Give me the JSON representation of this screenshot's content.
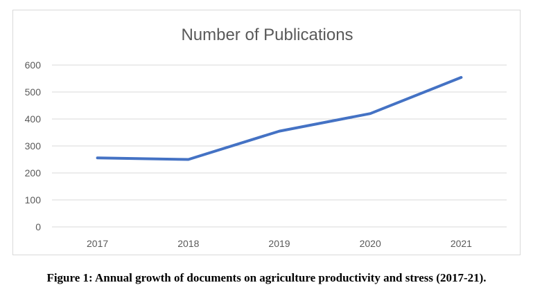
{
  "chart_data": {
    "type": "line",
    "title": "Number of Publications",
    "categories": [
      "2017",
      "2018",
      "2019",
      "2020",
      "2021"
    ],
    "series": [
      {
        "values": [
          256,
          250,
          355,
          420,
          554
        ],
        "color": "#4472c4"
      }
    ],
    "ylim": [
      0,
      600
    ],
    "yticks": [
      0,
      100,
      200,
      300,
      400,
      500,
      600
    ],
    "xlabel": "",
    "ylabel": "",
    "grid": true,
    "legend": "none"
  },
  "caption": "Figure 1: Annual growth of documents on agriculture productivity and stress (2017-21)."
}
